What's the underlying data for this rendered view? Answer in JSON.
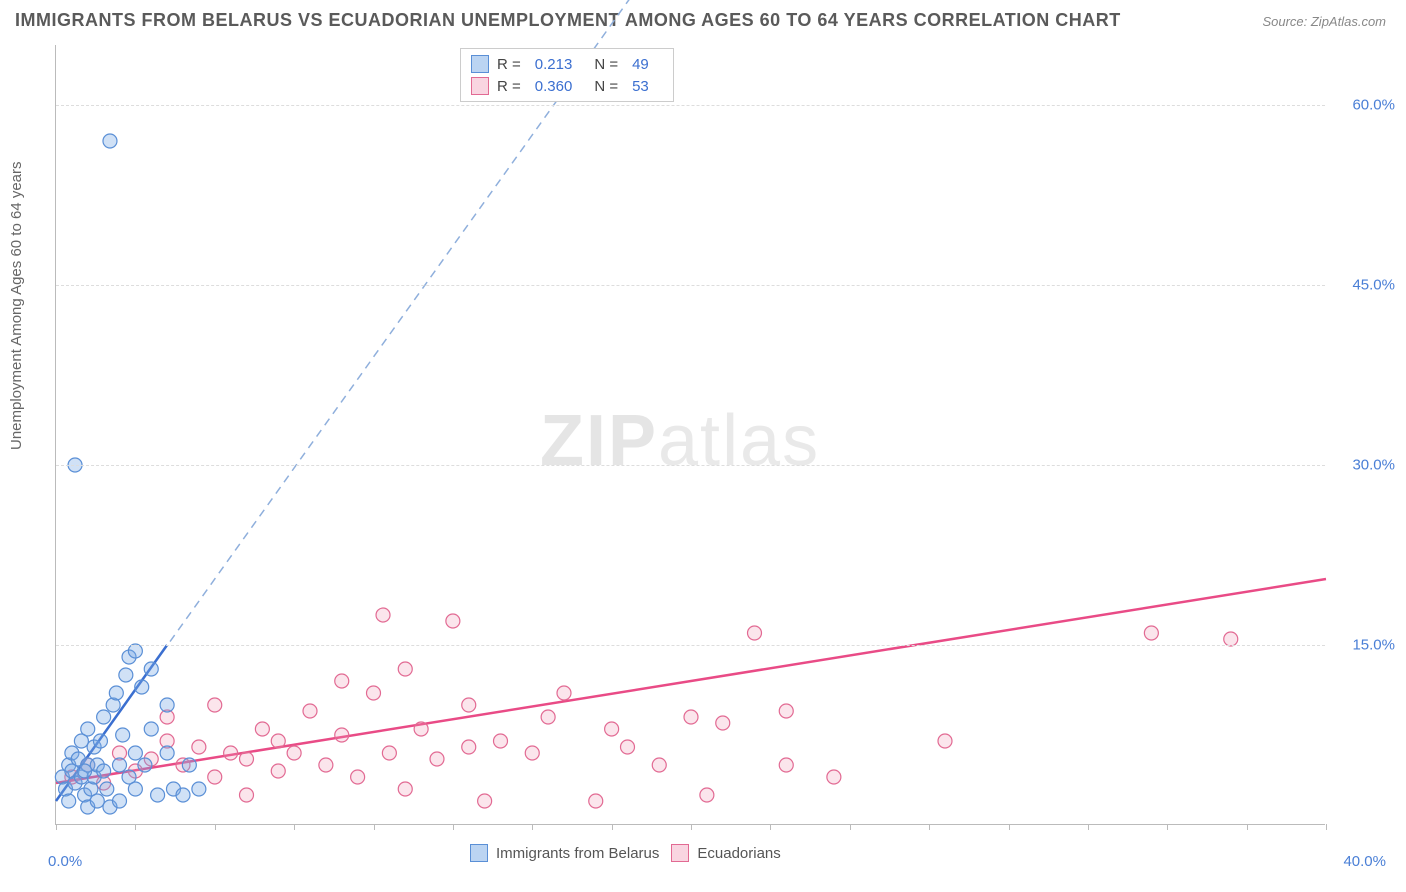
{
  "title": "IMMIGRANTS FROM BELARUS VS ECUADORIAN UNEMPLOYMENT AMONG AGES 60 TO 64 YEARS CORRELATION CHART",
  "source": "Source: ZipAtlas.com",
  "y_label": "Unemployment Among Ages 60 to 64 years",
  "watermark_a": "ZIP",
  "watermark_b": "atlas",
  "chart": {
    "type": "scatter",
    "xlim": [
      0,
      40
    ],
    "ylim": [
      0,
      65
    ],
    "x_ticks": [
      0,
      2.5,
      5,
      7.5,
      10,
      12.5,
      15,
      17.5,
      20,
      22.5,
      25,
      27.5,
      30,
      32.5,
      35,
      37.5,
      40
    ],
    "x_tick_labels": {
      "0": "0.0%",
      "40": "40.0%"
    },
    "y_ticks": [
      15,
      30,
      45,
      60
    ],
    "y_tick_labels": {
      "15": "15.0%",
      "30": "30.0%",
      "45": "45.0%",
      "60": "60.0%"
    },
    "grid_color": "#dddddd",
    "background_color": "#ffffff",
    "marker_radius": 7,
    "series": [
      {
        "name": "Immigrants from Belarus",
        "color_fill": "rgba(120,170,230,0.35)",
        "color_stroke": "#5a8fd6",
        "R": "0.213",
        "N": "49",
        "trend": {
          "x1": 0,
          "y1": 2.0,
          "x2_solid": 3.5,
          "y2_solid": 15.0,
          "x2_dash": 20.0,
          "y2_dash": 76.0
        },
        "points": [
          [
            0.2,
            4.0
          ],
          [
            0.3,
            3.0
          ],
          [
            0.4,
            5.0
          ],
          [
            0.5,
            4.5
          ],
          [
            0.5,
            6.0
          ],
          [
            0.6,
            3.5
          ],
          [
            0.7,
            5.5
          ],
          [
            0.8,
            4.0
          ],
          [
            0.8,
            7.0
          ],
          [
            0.9,
            2.5
          ],
          [
            1.0,
            5.0
          ],
          [
            1.0,
            8.0
          ],
          [
            1.1,
            3.0
          ],
          [
            1.2,
            6.5
          ],
          [
            1.2,
            4.0
          ],
          [
            1.3,
            5.0
          ],
          [
            1.4,
            7.0
          ],
          [
            1.5,
            4.5
          ],
          [
            1.5,
            9.0
          ],
          [
            1.6,
            3.0
          ],
          [
            1.7,
            1.5
          ],
          [
            1.8,
            10.0
          ],
          [
            1.9,
            11.0
          ],
          [
            2.0,
            5.0
          ],
          [
            2.0,
            2.0
          ],
          [
            2.1,
            7.5
          ],
          [
            2.2,
            12.5
          ],
          [
            2.3,
            4.0
          ],
          [
            2.3,
            14.0
          ],
          [
            2.5,
            6.0
          ],
          [
            2.5,
            3.0
          ],
          [
            2.7,
            11.5
          ],
          [
            2.8,
            5.0
          ],
          [
            3.0,
            8.0
          ],
          [
            3.0,
            13.0
          ],
          [
            3.2,
            2.5
          ],
          [
            3.5,
            6.0
          ],
          [
            3.5,
            10.0
          ],
          [
            3.7,
            3.0
          ],
          [
            4.0,
            2.5
          ],
          [
            4.2,
            5.0
          ],
          [
            4.5,
            3.0
          ],
          [
            0.6,
            30.0
          ],
          [
            1.7,
            57.0
          ],
          [
            2.5,
            14.5
          ],
          [
            1.0,
            1.5
          ],
          [
            1.3,
            2.0
          ],
          [
            0.4,
            2.0
          ],
          [
            0.9,
            4.5
          ]
        ]
      },
      {
        "name": "Ecuadorians",
        "color_fill": "rgba(240,150,180,0.25)",
        "color_stroke": "#e26a93",
        "R": "0.360",
        "N": "53",
        "trend": {
          "x1": 0,
          "y1": 3.5,
          "x2_solid": 40,
          "y2_solid": 20.5,
          "x2_dash": 40,
          "y2_dash": 20.5
        },
        "points": [
          [
            0.5,
            4.0
          ],
          [
            1.0,
            5.0
          ],
          [
            1.5,
            3.5
          ],
          [
            2.0,
            6.0
          ],
          [
            2.5,
            4.5
          ],
          [
            3.0,
            5.5
          ],
          [
            3.5,
            7.0
          ],
          [
            3.5,
            9.0
          ],
          [
            4.0,
            5.0
          ],
          [
            4.5,
            6.5
          ],
          [
            5.0,
            4.0
          ],
          [
            5.0,
            10.0
          ],
          [
            5.5,
            6.0
          ],
          [
            6.0,
            5.5
          ],
          [
            6.5,
            8.0
          ],
          [
            7.0,
            4.5
          ],
          [
            7.0,
            7.0
          ],
          [
            7.5,
            6.0
          ],
          [
            8.0,
            9.5
          ],
          [
            8.5,
            5.0
          ],
          [
            9.0,
            7.5
          ],
          [
            9.0,
            12.0
          ],
          [
            9.5,
            4.0
          ],
          [
            10.0,
            11.0
          ],
          [
            10.3,
            17.5
          ],
          [
            10.5,
            6.0
          ],
          [
            11.0,
            13.0
          ],
          [
            11.5,
            8.0
          ],
          [
            12.0,
            5.5
          ],
          [
            12.5,
            17.0
          ],
          [
            13.0,
            6.5
          ],
          [
            13.0,
            10.0
          ],
          [
            13.5,
            2.0
          ],
          [
            14.0,
            7.0
          ],
          [
            15.0,
            6.0
          ],
          [
            15.5,
            9.0
          ],
          [
            16.0,
            11.0
          ],
          [
            17.0,
            2.0
          ],
          [
            17.5,
            8.0
          ],
          [
            18.0,
            6.5
          ],
          [
            19.0,
            5.0
          ],
          [
            20.0,
            9.0
          ],
          [
            20.5,
            2.5
          ],
          [
            21.0,
            8.5
          ],
          [
            22.0,
            16.0
          ],
          [
            23.0,
            5.0
          ],
          [
            23.0,
            9.5
          ],
          [
            24.5,
            4.0
          ],
          [
            28.0,
            7.0
          ],
          [
            34.5,
            16.0
          ],
          [
            37.0,
            15.5
          ],
          [
            6.0,
            2.5
          ],
          [
            11.0,
            3.0
          ]
        ]
      }
    ]
  },
  "legend_top": {
    "rows": [
      {
        "swatch_fill": "rgba(120,170,230,0.5)",
        "swatch_stroke": "#5a8fd6",
        "R_label": "R  =",
        "R": "0.213",
        "N_label": "N  =",
        "N": "49"
      },
      {
        "swatch_fill": "rgba(240,150,180,0.4)",
        "swatch_stroke": "#e26a93",
        "R_label": "R  =",
        "R": "0.360",
        "N_label": "N  =",
        "N": "53"
      }
    ]
  },
  "legend_bottom": {
    "items": [
      {
        "swatch_fill": "rgba(120,170,230,0.5)",
        "swatch_stroke": "#5a8fd6",
        "label": "Immigrants from Belarus"
      },
      {
        "swatch_fill": "rgba(240,150,180,0.4)",
        "swatch_stroke": "#e26a93",
        "label": "Ecuadorians"
      }
    ]
  }
}
